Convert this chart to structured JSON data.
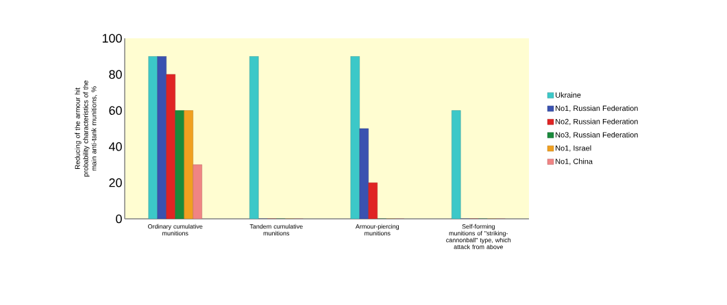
{
  "chart_data": {
    "type": "bar",
    "ylabel": "Reducing of the armour hit probability characteristics of the main anti-tank munitions, %",
    "categories": [
      "Ordinary cumulative munitions",
      "Tandem cumulative munitions",
      "Armour-piercing munitions",
      "Self-forming munitions of \"striking-cannonball\" type, which attack from above"
    ],
    "series": [
      {
        "name": "Ukraine",
        "color": "#3cc8c8",
        "values": [
          90,
          90,
          90,
          60
        ]
      },
      {
        "name": "No1, Russian Federation",
        "color": "#3a52b0",
        "values": [
          90,
          0,
          50,
          0
        ]
      },
      {
        "name": "No2, Russian Federation",
        "color": "#e02424",
        "values": [
          80,
          0,
          20,
          0
        ]
      },
      {
        "name": "No3, Russian Federation",
        "color": "#1a8a3c",
        "values": [
          60,
          0,
          0,
          0
        ]
      },
      {
        "name": "No1, Israel",
        "color": "#f0a020",
        "values": [
          60,
          0,
          0,
          0
        ]
      },
      {
        "name": "No1, China",
        "color": "#f08484",
        "values": [
          30,
          0,
          0,
          0
        ]
      }
    ],
    "ylim": [
      0,
      100
    ],
    "yticks": [
      0,
      20,
      40,
      60,
      80,
      100
    ],
    "legend": "right"
  }
}
